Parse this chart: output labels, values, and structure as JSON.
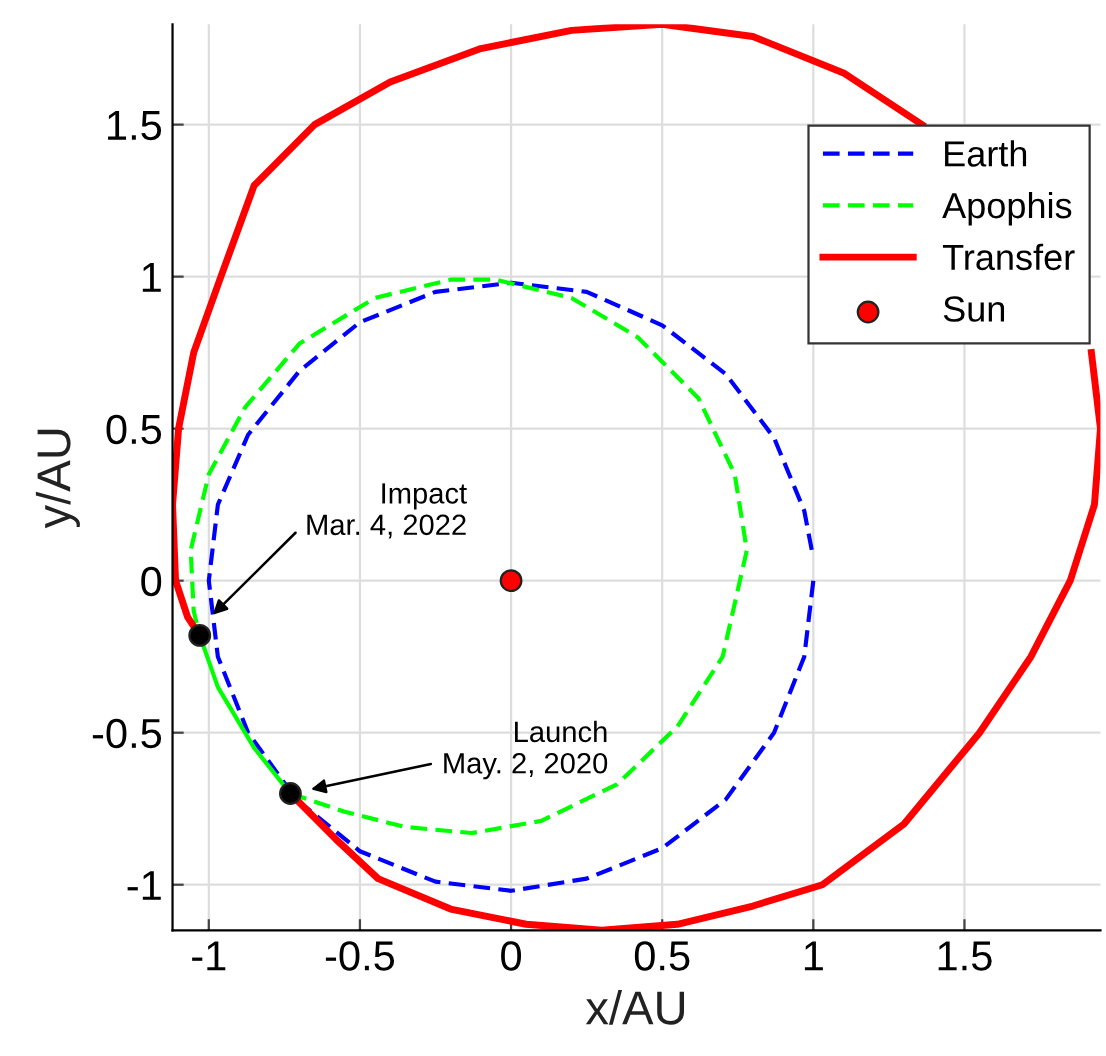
{
  "chart_data": {
    "type": "line",
    "xlabel": "x/AU",
    "ylabel": "y/AU",
    "xlim": [
      -1.12,
      1.95
    ],
    "ylim": [
      -1.15,
      1.83
    ],
    "xticks": [
      -1,
      -0.5,
      0,
      0.5,
      1,
      1.5
    ],
    "yticks": [
      -1,
      -0.5,
      0,
      0.5,
      1,
      1.5
    ],
    "grid": true,
    "legend": "top right",
    "series": [
      {
        "name": "Earth",
        "color": "#0000ff",
        "line_style": "dashed",
        "x": [
          1,
          0.97,
          0.87,
          0.71,
          0.5,
          0.25,
          0,
          -0.25,
          -0.5,
          -0.71,
          -0.87,
          -0.97,
          -1.0,
          -0.97,
          -0.87,
          -0.7,
          -0.5,
          -0.25,
          0,
          0.25,
          0.5,
          0.71,
          0.87,
          0.97,
          0.995
        ],
        "values": [
          0,
          -0.25,
          -0.5,
          -0.72,
          -0.88,
          -0.98,
          -1.02,
          -0.99,
          -0.89,
          -0.72,
          -0.5,
          -0.25,
          0,
          0.25,
          0.48,
          0.69,
          0.85,
          0.95,
          0.98,
          0.95,
          0.84,
          0.68,
          0.47,
          0.23,
          0.1
        ]
      },
      {
        "name": "Apophis",
        "color": "#00ff00",
        "line_style": "dashed",
        "x": [
          -0.73,
          -0.55,
          -0.35,
          -0.13,
          0.1,
          0.35,
          0.55,
          0.7,
          0.78,
          0.74,
          0.62,
          0.42,
          0.2,
          -0.05,
          -0.2,
          -0.45,
          -0.7,
          -0.88,
          -1.0,
          -1.06,
          -1.05,
          -1.03
        ],
        "values": [
          -0.7,
          -0.76,
          -0.81,
          -0.83,
          -0.79,
          -0.67,
          -0.48,
          -0.25,
          0.1,
          0.35,
          0.6,
          0.8,
          0.93,
          0.99,
          0.99,
          0.93,
          0.78,
          0.57,
          0.35,
          0.1,
          -0.1,
          -0.18
        ]
      },
      {
        "name": "Transfer",
        "color": "#ff0000",
        "line_style": "solid",
        "x": [
          -0.73,
          -0.58,
          -0.44,
          -0.2,
          0.05,
          0.3,
          0.55,
          0.8,
          1.03,
          1.3,
          1.55,
          1.72,
          1.85,
          1.93,
          1.95,
          1.92,
          1.81,
          1.63,
          1.36,
          1.1,
          0.8,
          0.5,
          0.2,
          -0.1,
          -0.4,
          -0.65,
          -0.85,
          -0.96,
          -1.05,
          -1.1,
          -1.12,
          -1.11,
          -1.07,
          -1.03
        ],
        "values": [
          -0.7,
          -0.85,
          -0.98,
          -1.08,
          -1.13,
          -1.15,
          -1.13,
          -1.07,
          -1.0,
          -0.8,
          -0.5,
          -0.25,
          0,
          0.25,
          0.5,
          0.75,
          null,
          null,
          1.5,
          1.67,
          1.79,
          1.83,
          1.81,
          1.75,
          1.64,
          1.5,
          1.3,
          1.0,
          0.75,
          0.5,
          0.25,
          0,
          -0.12,
          -0.18
        ]
      },
      {
        "color": "#00ff00",
        "line_style": "solid",
        "x": [
          -1.03,
          -0.97,
          -0.85,
          -0.73
        ],
        "values": [
          -0.18,
          -0.35,
          -0.55,
          -0.7
        ]
      },
      {
        "name": "Sun",
        "type": "scatter",
        "color": "#ff0000",
        "marker": "circle",
        "x": [
          0
        ],
        "values": [
          0
        ]
      },
      {
        "type": "scatter",
        "color": "#000000",
        "marker": "circle",
        "x": [
          -1.03,
          -0.73
        ],
        "values": [
          -0.18,
          -0.7
        ]
      }
    ],
    "annotations": [
      {
        "text": "Impact\nMar. 4, 2022",
        "x": -1.0,
        "y": -0.125
      },
      {
        "text": "Launch\nMay. 2, 2020",
        "x": -0.68,
        "y": -0.69
      }
    ]
  }
}
